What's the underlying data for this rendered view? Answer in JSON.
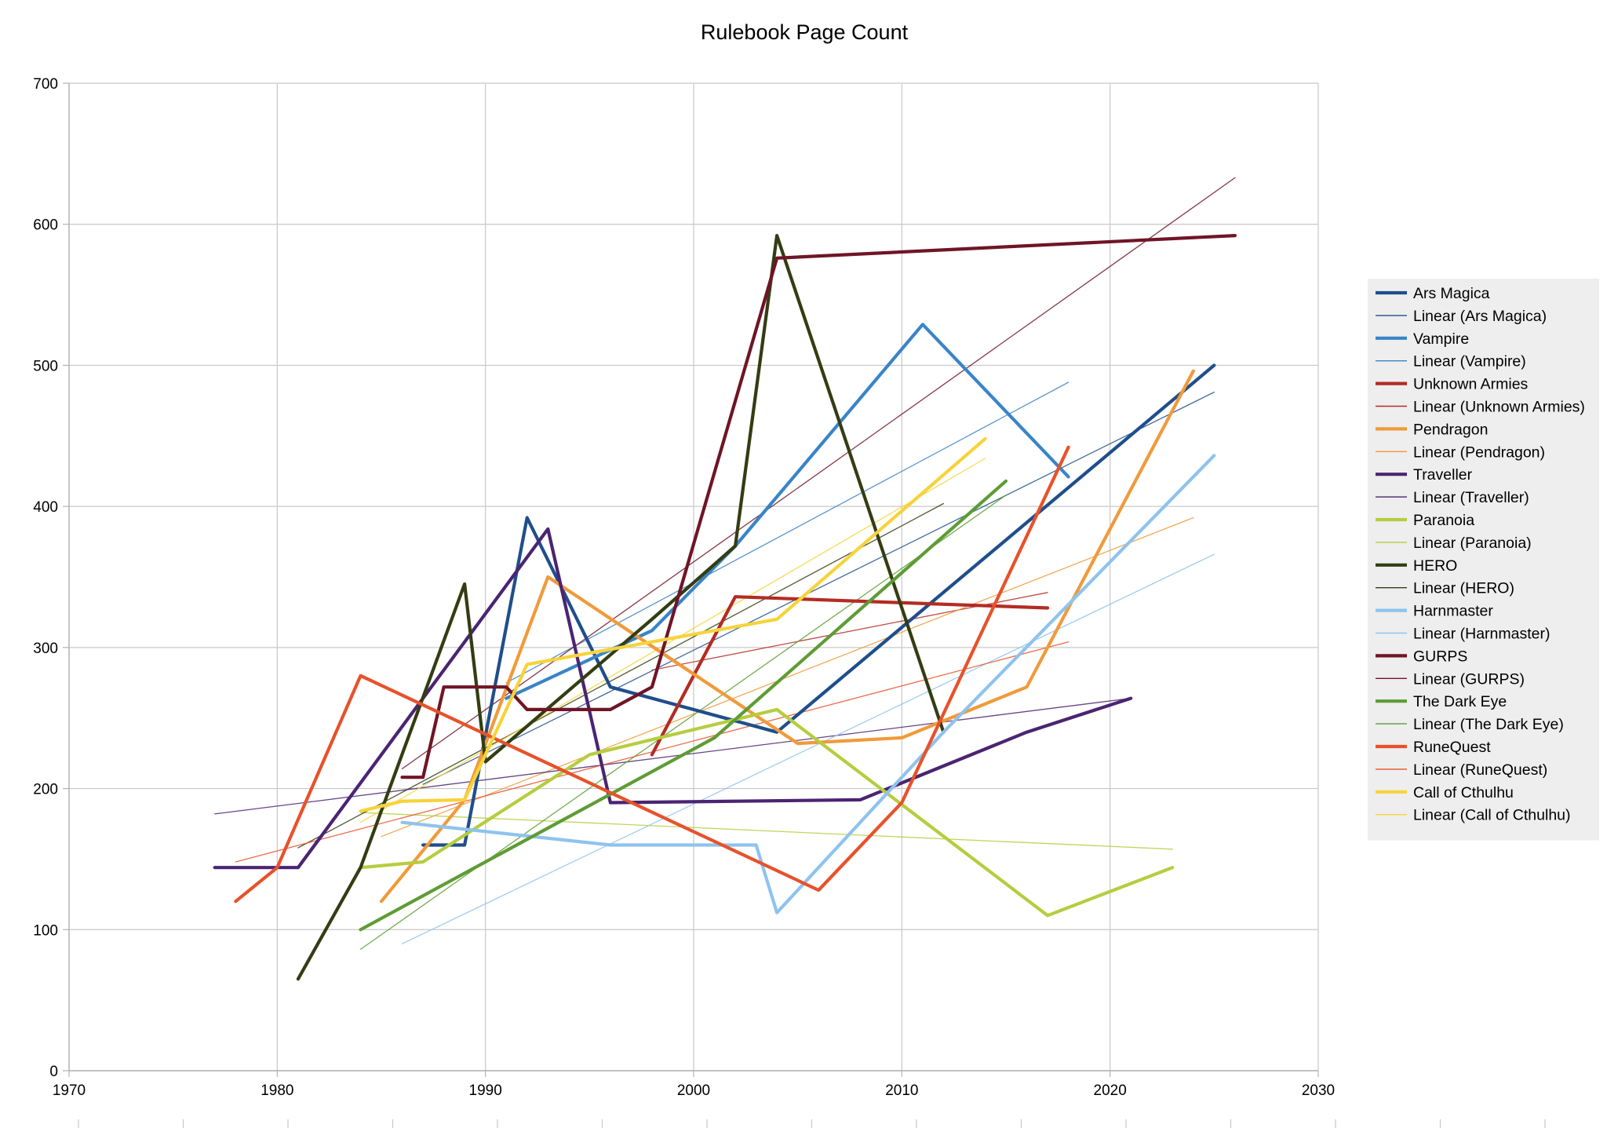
{
  "chart_data": {
    "type": "line",
    "title": "Rulebook Page Count",
    "xlabel": "",
    "ylabel": "",
    "xlim": [
      1970,
      2030
    ],
    "ylim": [
      0,
      700
    ],
    "x_ticks": [
      "1970",
      "1980",
      "1990",
      "2000",
      "2010",
      "2020",
      "2030"
    ],
    "y_ticks": [
      "0",
      "100",
      "200",
      "300",
      "400",
      "500",
      "600",
      "700"
    ],
    "grid": true,
    "legend_position": "right",
    "series": [
      {
        "name": "Ars Magica",
        "color": "#1f4e8c",
        "kind": "data",
        "points": [
          [
            1987,
            160
          ],
          [
            1989,
            160
          ],
          [
            1992,
            392
          ],
          [
            1996,
            272
          ],
          [
            2004,
            240
          ],
          [
            2025,
            500
          ]
        ]
      },
      {
        "name": "Linear (Ars Magica)",
        "color": "#1f4e8c",
        "kind": "trend",
        "points": [
          [
            1987,
            203
          ],
          [
            2025,
            481
          ]
        ]
      },
      {
        "name": "Vampire",
        "color": "#3a84c8",
        "kind": "data",
        "points": [
          [
            1991,
            264
          ],
          [
            1998,
            312
          ],
          [
            2002,
            372
          ],
          [
            2011,
            529
          ],
          [
            2018,
            421
          ]
        ]
      },
      {
        "name": "Linear (Vampire)",
        "color": "#3a84c8",
        "kind": "trend",
        "points": [
          [
            1991,
            275
          ],
          [
            2018,
            488
          ]
        ]
      },
      {
        "name": "Unknown Armies",
        "color": "#b32c23",
        "kind": "data",
        "points": [
          [
            1998,
            224
          ],
          [
            2002,
            336
          ],
          [
            2017,
            328
          ]
        ]
      },
      {
        "name": "Linear (Unknown Armies)",
        "color": "#b32c23",
        "kind": "trend",
        "points": [
          [
            1998,
            284
          ],
          [
            2017,
            339
          ]
        ]
      },
      {
        "name": "Pendragon",
        "color": "#f19a3a",
        "kind": "data",
        "points": [
          [
            1985,
            120
          ],
          [
            1989,
            192
          ],
          [
            1993,
            350
          ],
          [
            2005,
            232
          ],
          [
            2010,
            236
          ],
          [
            2016,
            272
          ],
          [
            2024,
            496
          ]
        ]
      },
      {
        "name": "Linear (Pendragon)",
        "color": "#f19a3a",
        "kind": "trend",
        "points": [
          [
            1985,
            166
          ],
          [
            2024,
            392
          ]
        ]
      },
      {
        "name": "Traveller",
        "color": "#4b2472",
        "kind": "data",
        "points": [
          [
            1977,
            144
          ],
          [
            1981,
            144
          ],
          [
            1993,
            384
          ],
          [
            1996,
            190
          ],
          [
            2008,
            192
          ],
          [
            2016,
            240
          ],
          [
            2021,
            264
          ]
        ]
      },
      {
        "name": "Linear (Traveller)",
        "color": "#4b2472",
        "kind": "trend",
        "points": [
          [
            1977,
            182
          ],
          [
            2021,
            264
          ]
        ]
      },
      {
        "name": "Paranoia",
        "color": "#b5cd3f",
        "kind": "data",
        "points": [
          [
            1984,
            144
          ],
          [
            1987,
            148
          ],
          [
            1995,
            224
          ],
          [
            2004,
            256
          ],
          [
            2017,
            110
          ],
          [
            2023,
            144
          ]
        ]
      },
      {
        "name": "Linear (Paranoia)",
        "color": "#b5cd3f",
        "kind": "trend",
        "points": [
          [
            1984,
            183
          ],
          [
            2023,
            157
          ]
        ]
      },
      {
        "name": "HERO",
        "color": "#333d12",
        "kind": "data",
        "points": [
          [
            1981,
            65
          ],
          [
            1984,
            144
          ],
          [
            1989,
            345
          ],
          [
            1990,
            219
          ],
          [
            1998,
            320
          ],
          [
            2002,
            372
          ],
          [
            2004,
            592
          ],
          [
            2012,
            240
          ]
        ]
      },
      {
        "name": "Linear (HERO)",
        "color": "#333d12",
        "kind": "trend",
        "points": [
          [
            1981,
            158
          ],
          [
            2012,
            402
          ]
        ]
      },
      {
        "name": "Harnmaster",
        "color": "#8fc3ee",
        "kind": "data",
        "points": [
          [
            1986,
            176
          ],
          [
            1996,
            160
          ],
          [
            2003,
            160
          ],
          [
            2004,
            112
          ],
          [
            2012,
            240
          ],
          [
            2025,
            436
          ]
        ]
      },
      {
        "name": "Linear (Harnmaster)",
        "color": "#8fc3ee",
        "kind": "trend",
        "points": [
          [
            1986,
            90
          ],
          [
            2025,
            366
          ]
        ]
      },
      {
        "name": "GURPS",
        "color": "#6f1526",
        "kind": "data",
        "points": [
          [
            1986,
            208
          ],
          [
            1987,
            208
          ],
          [
            1988,
            272
          ],
          [
            1991,
            272
          ],
          [
            1992,
            256
          ],
          [
            1996,
            256
          ],
          [
            1998,
            272
          ],
          [
            2004,
            576
          ],
          [
            2026,
            592
          ]
        ]
      },
      {
        "name": "Linear (GURPS)",
        "color": "#6f1526",
        "kind": "trend",
        "points": [
          [
            1986,
            214
          ],
          [
            2026,
            633
          ]
        ]
      },
      {
        "name": "The Dark Eye",
        "color": "#5e9c35",
        "kind": "data",
        "points": [
          [
            1984,
            100
          ],
          [
            2001,
            236
          ],
          [
            2015,
            418
          ]
        ]
      },
      {
        "name": "Linear (The Dark Eye)",
        "color": "#5e9c35",
        "kind": "trend",
        "points": [
          [
            1984,
            86
          ],
          [
            2015,
            408
          ]
        ]
      },
      {
        "name": "RuneQuest",
        "color": "#e7522b",
        "kind": "data",
        "points": [
          [
            1978,
            120
          ],
          [
            1980,
            144
          ],
          [
            1984,
            280
          ],
          [
            2006,
            128
          ],
          [
            2010,
            190
          ],
          [
            2018,
            442
          ]
        ]
      },
      {
        "name": "Linear (RuneQuest)",
        "color": "#e7522b",
        "kind": "trend",
        "points": [
          [
            1978,
            148
          ],
          [
            2018,
            304
          ]
        ]
      },
      {
        "name": "Call of Cthulhu",
        "color": "#f7d33a",
        "kind": "data",
        "points": [
          [
            1984,
            184
          ],
          [
            1986,
            191
          ],
          [
            1989,
            192
          ],
          [
            1992,
            288
          ],
          [
            2004,
            320
          ],
          [
            2014,
            448
          ]
        ]
      },
      {
        "name": "Linear (Call of Cthulhu)",
        "color": "#f7d33a",
        "kind": "trend",
        "points": [
          [
            1984,
            176
          ],
          [
            2014,
            434
          ]
        ]
      }
    ]
  }
}
